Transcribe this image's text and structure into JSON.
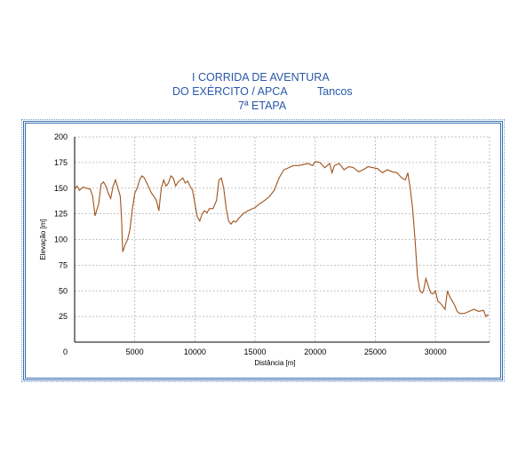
{
  "chart_data": {
    "type": "line",
    "title_lines": [
      "I CORRIDA DE AVENTURA",
      "DO EXÉRCITO / APCA",
      "7ª ETAPA"
    ],
    "subtitle": "Tancos",
    "xlabel": "Distância [m]",
    "ylabel": "Elevação [m]",
    "xlim": [
      0,
      34500
    ],
    "ylim": [
      0,
      200
    ],
    "xticks": [
      5000,
      10000,
      15000,
      20000,
      25000,
      30000
    ],
    "yticks": [
      0,
      25,
      50,
      75,
      100,
      125,
      150,
      175,
      200
    ],
    "grid": true,
    "line_color": "#a0521e",
    "series": [
      {
        "x": [
          0,
          200,
          400,
          700,
          1000,
          1300,
          1500,
          1700,
          2000,
          2200,
          2400,
          2600,
          2800,
          3000,
          3200,
          3400,
          3600,
          3800,
          3900,
          4000,
          4200,
          4400,
          4600,
          4800,
          5000,
          5200,
          5400,
          5600,
          5800,
          6000,
          6200,
          6400,
          6600,
          6800,
          7000,
          7200,
          7400,
          7600,
          7800,
          8000,
          8200,
          8400,
          8600,
          8800,
          9000,
          9200,
          9400,
          9600,
          9800,
          10000,
          10200,
          10400,
          10600,
          10800,
          11000,
          11200,
          11500,
          11800,
          12000,
          12200,
          12400,
          12600,
          12800,
          13000,
          13200,
          13400,
          13600,
          14000,
          14400,
          14800,
          15000,
          15400,
          15800,
          16200,
          16600,
          17000,
          17400,
          17800,
          18200,
          18600,
          19000,
          19400,
          19800,
          20000,
          20400,
          20800,
          21200,
          21400,
          21600,
          22000,
          22400,
          22800,
          23200,
          23600,
          24000,
          24400,
          24800,
          25200,
          25600,
          26000,
          26400,
          26800,
          27200,
          27500,
          27700,
          27900,
          28100,
          28300,
          28500,
          28700,
          28900,
          29000,
          29200,
          29400,
          29600,
          29800,
          30000,
          30200,
          30400,
          30600,
          30800,
          31000,
          31200,
          31400,
          31600,
          31800,
          32000,
          32400,
          32800,
          33200,
          33600,
          34000,
          34200,
          34400
        ],
        "y": [
          149,
          152,
          148,
          151,
          150,
          149,
          142,
          123,
          135,
          154,
          156,
          152,
          145,
          140,
          152,
          158,
          150,
          142,
          120,
          88,
          95,
          100,
          110,
          130,
          145,
          150,
          158,
          162,
          160,
          155,
          150,
          145,
          142,
          138,
          128,
          150,
          158,
          152,
          155,
          162,
          160,
          152,
          156,
          158,
          160,
          155,
          157,
          152,
          148,
          135,
          122,
          118,
          125,
          128,
          126,
          130,
          130,
          138,
          158,
          160,
          150,
          130,
          118,
          115,
          118,
          117,
          120,
          125,
          128,
          130,
          131,
          135,
          138,
          142,
          148,
          160,
          168,
          170,
          172,
          172,
          173,
          174,
          172,
          176,
          175,
          170,
          174,
          165,
          172,
          174,
          168,
          171,
          170,
          166,
          168,
          171,
          170,
          169,
          165,
          168,
          166,
          165,
          160,
          158,
          165,
          150,
          130,
          100,
          65,
          50,
          48,
          50,
          62,
          55,
          48,
          47,
          50,
          40,
          38,
          35,
          32,
          50,
          44,
          40,
          36,
          30,
          28,
          28,
          30,
          32,
          30,
          31,
          25,
          27
        ]
      }
    ]
  }
}
